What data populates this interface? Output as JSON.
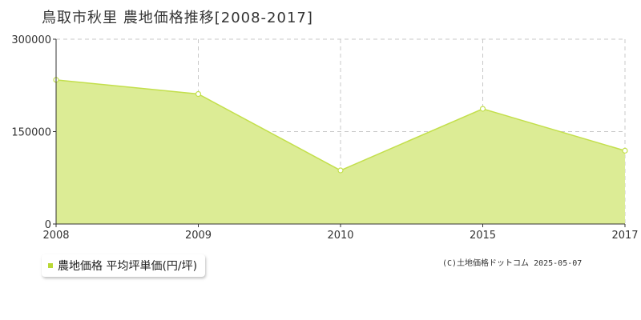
{
  "page": {
    "title": "鳥取市秋里 農地価格推移[2008-2017]",
    "credit": "(C)土地価格ドットコム 2025-05-07"
  },
  "colors": {
    "fill": "#dcec95",
    "line": "#c3df4c",
    "marker_fill": "#ffffff",
    "grid": "#c8c8c8",
    "axis": "#333333",
    "legend_swatch": "#b9d836"
  },
  "chart_data": {
    "type": "area",
    "title": "鳥取市秋里 農地価格推移[2008-2017]",
    "categories": [
      "2008",
      "2009",
      "2010",
      "2015",
      "2017"
    ],
    "series": [
      {
        "name": "農地価格 平均坪単価(円/坪)",
        "values": [
          234000,
          211000,
          87000,
          187000,
          119000
        ]
      }
    ],
    "ylim": [
      0,
      300000
    ],
    "yticks": [
      0,
      150000,
      300000
    ],
    "grid": true,
    "legend": "bottom-left"
  }
}
